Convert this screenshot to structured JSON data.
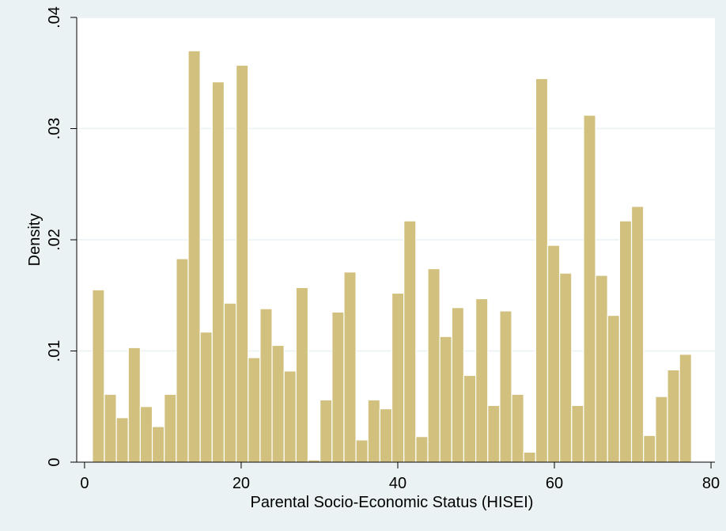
{
  "chart_data": {
    "type": "bar",
    "xlabel": "Parental Socio-Economic Status (HISEI)",
    "ylabel": "Density",
    "xlim": [
      -1,
      80.5
    ],
    "ylim": [
      0,
      0.04
    ],
    "x_ticks": [
      0,
      20,
      40,
      60,
      80
    ],
    "x_tick_labels": [
      "0",
      "20",
      "40",
      "60",
      "80"
    ],
    "y_ticks": [
      0,
      0.01,
      0.02,
      0.03,
      0.04
    ],
    "y_tick_labels": [
      "0",
      ".01",
      ".02",
      ".03",
      ".04"
    ],
    "grid": true,
    "bin_width": 1.53,
    "bin_start": 1,
    "values": [
      0.0155,
      0.0061,
      0.004,
      0.0103,
      0.005,
      0.0032,
      0.0061,
      0.0183,
      0.037,
      0.0117,
      0.0342,
      0.0143,
      0.0357,
      0.0094,
      0.0138,
      0.0105,
      0.0082,
      0.0157,
      0.0002,
      0.0056,
      0.0135,
      0.0171,
      0.002,
      0.0056,
      0.0048,
      0.0152,
      0.0217,
      0.0023,
      0.0174,
      0.0113,
      0.0139,
      0.0078,
      0.0147,
      0.0051,
      0.0136,
      0.0061,
      0.0009,
      0.0345,
      0.0195,
      0.017,
      0.0051,
      0.0312,
      0.0168,
      0.0132,
      0.0217,
      0.023,
      0.0024,
      0.0059,
      0.0083,
      0.0097
    ],
    "colors": {
      "bar_fill": "#d2c17e",
      "bar_stroke": "#ffffff",
      "plot_bg": "#ffffff",
      "outer_bg": "#eaf2f3",
      "grid": "#eaf2f3"
    }
  }
}
